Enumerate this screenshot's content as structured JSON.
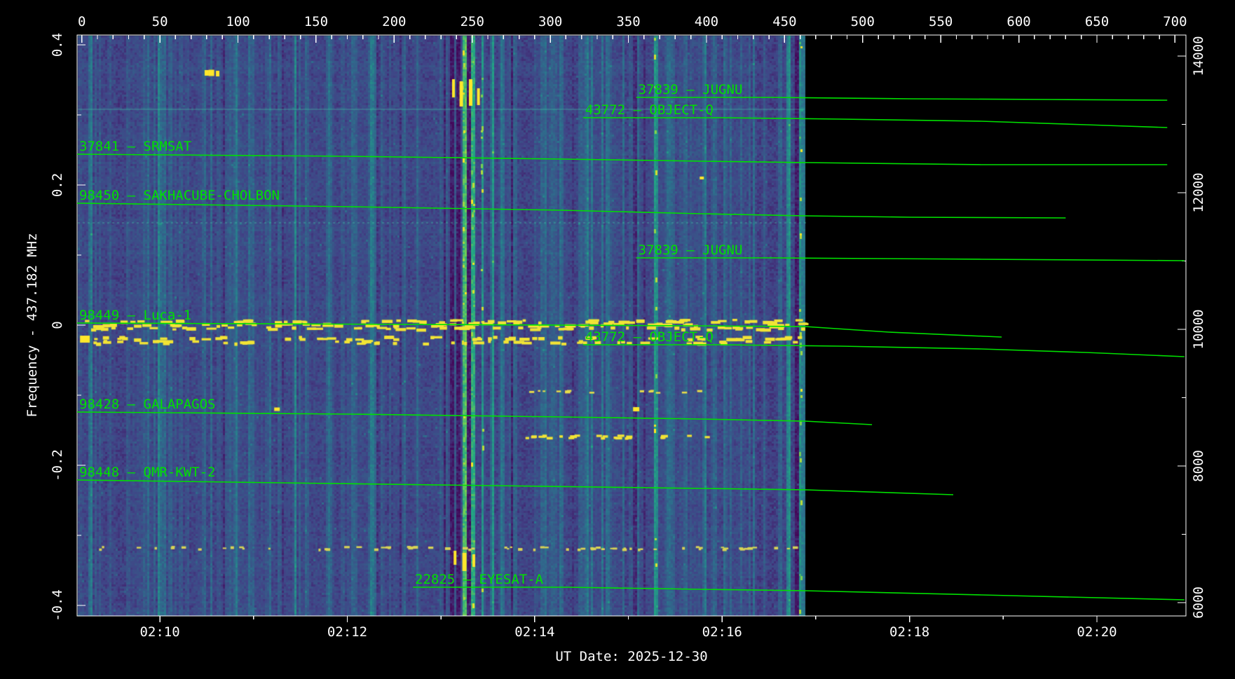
{
  "colors": {
    "background": "#000000",
    "frame": "#ffffff",
    "trace_green": "#00e000",
    "text_white": "#ffffff",
    "heatmap_palette": [
      "#440154",
      "#414487",
      "#2a788e",
      "#22a884",
      "#7ad151",
      "#fde725"
    ]
  },
  "footer": {
    "ut_date": "UT Date: 2025-12-30"
  },
  "chart_data": {
    "type": "heatmap",
    "description": "RF spectrogram waterfall with predicted satellite Doppler traces overlaid in green",
    "x_top_axis": {
      "unit": "seconds since start",
      "range": [
        -3,
        707
      ],
      "major_ticks": [
        0,
        50,
        100,
        150,
        200,
        250,
        300,
        350,
        400,
        450,
        500,
        550,
        600,
        650,
        700
      ],
      "minor_step": 10
    },
    "x_bottom_axis": {
      "ticks": [
        {
          "label": "02:10",
          "t": 50
        },
        {
          "label": "02:12",
          "t": 170
        },
        {
          "label": "02:14",
          "t": 290
        },
        {
          "label": "02:16",
          "t": 410
        },
        {
          "label": "02:18",
          "t": 530
        },
        {
          "label": "02:20",
          "t": 650
        }
      ],
      "minor_ticks_t": [
        110,
        230,
        350,
        470,
        590
      ]
    },
    "y_left_axis": {
      "title": "Frequency - 437.182 MHz",
      "unit": "MHz offset",
      "range": [
        -0.415,
        0.414
      ],
      "major_ticks": [
        {
          "label": "0.4",
          "f": 0.4
        },
        {
          "label": "0.2",
          "f": 0.2
        },
        {
          "label": "0",
          "f": 0
        },
        {
          "label": "-0.2",
          "f": -0.2
        },
        {
          "label": "-0.4",
          "f": -0.4
        }
      ],
      "minor_ticks_f": [
        0.3,
        0.1,
        -0.1,
        -0.3
      ]
    },
    "y_right_axis": {
      "range": [
        5805,
        14308
      ],
      "major_ticks": [
        {
          "label": "14000",
          "v": 14000
        },
        {
          "label": "12000",
          "v": 12000
        },
        {
          "label": "10000",
          "v": 10000
        },
        {
          "label": "8000",
          "v": 8000
        },
        {
          "label": "6000",
          "v": 6000
        }
      ],
      "minor_ticks_v": [
        13000,
        11000,
        9000,
        7000
      ]
    },
    "ut_date": "UT Date: 2025-12-30",
    "data_time_extent": [
      -2,
      463
    ],
    "traces": [
      {
        "norad": "37841",
        "label": "37841 — SRMSAT",
        "points": [
          [
            -3,
            0.244
          ],
          [
            168,
            0.241
          ],
          [
            307,
            0.237
          ],
          [
            396,
            0.234
          ],
          [
            463,
            0.232
          ],
          [
            576,
            0.229
          ],
          [
            695,
            0.229
          ]
        ]
      },
      {
        "norad": "98450",
        "label": "98450 — SAKHACUBE-CHOLBON",
        "points": [
          [
            -3,
            0.174
          ],
          [
            172,
            0.169
          ],
          [
            307,
            0.164
          ],
          [
            396,
            0.159
          ],
          [
            463,
            0.156
          ],
          [
            531,
            0.154
          ],
          [
            630,
            0.153
          ]
        ]
      },
      {
        "norad": "37839",
        "label": "37839 — JUGNU",
        "points": [
          [
            355,
            0.325
          ],
          [
            443,
            0.325
          ],
          [
            531,
            0.323
          ],
          [
            621,
            0.322
          ],
          [
            695,
            0.321
          ]
        ]
      },
      {
        "norad": "43772",
        "label": "43772 — OBJECT-Q",
        "points": [
          [
            321,
            0.296
          ],
          [
            409,
            0.296
          ],
          [
            486,
            0.294
          ],
          [
            576,
            0.291
          ],
          [
            643,
            0.286
          ],
          [
            695,
            0.282
          ]
        ]
      },
      {
        "norad": "37839",
        "label": "37839 — JUGNU",
        "points": [
          [
            355,
            0.096
          ],
          [
            443,
            0.096
          ],
          [
            576,
            0.094
          ],
          [
            706,
            0.092
          ]
        ]
      },
      {
        "norad": "98449",
        "label": "98449 — Luca-1",
        "points": [
          [
            -3,
            0.003
          ],
          [
            217,
            0.001
          ],
          [
            396,
            -0.001
          ],
          [
            463,
            -0.002
          ],
          [
            517,
            -0.01
          ],
          [
            589,
            -0.017
          ]
        ]
      },
      {
        "norad": "43772",
        "label": "43772 — OBJECT-Q",
        "points": [
          [
            321,
            -0.028
          ],
          [
            409,
            -0.028
          ],
          [
            486,
            -0.03
          ],
          [
            576,
            -0.034
          ],
          [
            643,
            -0.039
          ],
          [
            706,
            -0.045
          ]
        ]
      },
      {
        "norad": "98428",
        "label": "98428 — GALAPAGOS",
        "points": [
          [
            -3,
            -0.124
          ],
          [
            172,
            -0.127
          ],
          [
            307,
            -0.131
          ],
          [
            396,
            -0.134
          ],
          [
            463,
            -0.137
          ],
          [
            506,
            -0.142
          ]
        ]
      },
      {
        "norad": "98448",
        "label": "98448 — QMR-KWT-2",
        "points": [
          [
            -3,
            -0.221
          ],
          [
            127,
            -0.225
          ],
          [
            262,
            -0.229
          ],
          [
            396,
            -0.233
          ],
          [
            463,
            -0.235
          ],
          [
            558,
            -0.242
          ]
        ]
      },
      {
        "norad": "22825",
        "label": "22825 — EYESAT-A",
        "points": [
          [
            212,
            -0.374
          ],
          [
            311,
            -0.374
          ],
          [
            396,
            -0.377
          ],
          [
            463,
            -0.379
          ],
          [
            576,
            -0.385
          ],
          [
            706,
            -0.392
          ]
        ]
      }
    ],
    "spectrogram": {
      "base_level": 0.25,
      "dark_columns": [
        {
          "t": 236,
          "w": 4
        },
        {
          "t": 240,
          "w": 3
        },
        {
          "t": 247,
          "w": 3
        },
        {
          "t": 457,
          "w": 3
        }
      ],
      "bright_columns": [
        {
          "t": 244,
          "b": 0.38
        },
        {
          "t": 250,
          "b": 0.42
        },
        {
          "t": 256,
          "b": 0.3
        },
        {
          "t": 262,
          "b": 0.26
        },
        {
          "t": 268,
          "b": 0.22
        },
        {
          "t": 367,
          "b": 0.34
        },
        {
          "t": 185,
          "b": 0.22
        },
        {
          "t": 82,
          "b": 0.16
        },
        {
          "t": 136,
          "b": 0.17
        },
        {
          "t": 306,
          "b": 0.18
        },
        {
          "t": 326,
          "b": 0.15
        },
        {
          "t": 336,
          "b": 0.17
        },
        {
          "t": 346,
          "b": 0.15
        },
        {
          "t": 56,
          "b": 0.14
        },
        {
          "t": 97,
          "b": 0.13
        },
        {
          "t": 158,
          "b": 0.13
        },
        {
          "t": 172,
          "b": 0.14
        },
        {
          "t": 214,
          "b": 0.13
        },
        {
          "t": 277,
          "b": 0.15
        },
        {
          "t": 296,
          "b": 0.14
        },
        {
          "t": 356,
          "b": 0.14
        },
        {
          "t": 377,
          "b": 0.15
        },
        {
          "t": 387,
          "b": 0.13
        },
        {
          "t": 397,
          "b": 0.14
        },
        {
          "t": 411,
          "b": 0.16
        },
        {
          "t": 427,
          "b": 0.13
        },
        {
          "t": 437,
          "b": 0.14
        },
        {
          "t": 447,
          "b": 0.15
        },
        {
          "t": 452,
          "b": 0.26
        },
        {
          "t": 460,
          "b": 0.3
        },
        {
          "t": 462,
          "b": 0.2
        },
        {
          "t": 120,
          "b": 0.11
        },
        {
          "t": 28,
          "b": 0.1
        },
        {
          "t": 230,
          "b": 0.16
        },
        {
          "t": 5,
          "b": 0.1
        }
      ],
      "h_lines": [
        {
          "f": 0.309,
          "alpha": 0.3,
          "dotted": false
        },
        {
          "f": 0.147,
          "alpha": 0.35,
          "dotted": true
        }
      ],
      "dash_bands": [
        {
          "rows_f": [
            0.007,
            0.002,
            -0.003,
            -0.017,
            -0.023
          ],
          "t_range": [
            0,
            462
          ],
          "count": 300,
          "w": [
            4,
            16
          ],
          "h": [
            3,
            5
          ],
          "color": "#f2e435"
        },
        {
          "rows_f": [
            -0.158
          ],
          "t_range": [
            280,
            400
          ],
          "count": 26,
          "w": [
            4,
            10
          ],
          "h": [
            3,
            4
          ],
          "color": "#f2e435"
        },
        {
          "rows_f": [
            -0.094
          ],
          "t_range": [
            282,
            397
          ],
          "count": 16,
          "w": [
            3,
            8
          ],
          "h": [
            2,
            3
          ],
          "color": "#e8dd4a"
        },
        {
          "rows_f": [
            -0.317
          ],
          "t_range": [
            3,
            460
          ],
          "count": 70,
          "w": [
            3,
            8
          ],
          "h": [
            2,
            4
          ],
          "color": "#d8d455"
        }
      ],
      "blobs": [
        [
          80,
          0.36,
          6,
          8
        ],
        [
          83,
          0.36,
          8,
          9
        ],
        [
          87,
          0.359,
          5,
          8
        ],
        [
          238,
          0.338,
          4,
          26
        ],
        [
          243,
          0.33,
          5,
          36
        ],
        [
          249,
          0.332,
          5,
          38
        ],
        [
          254,
          0.326,
          4,
          24
        ],
        [
          239,
          -0.332,
          4,
          20
        ],
        [
          245,
          -0.338,
          6,
          26
        ],
        [
          251,
          -0.336,
          4,
          18
        ],
        [
          125,
          -0.12,
          8,
          5
        ],
        [
          355,
          -0.12,
          9,
          6
        ],
        [
          126,
          0.0,
          10,
          7
        ],
        [
          2,
          -0.02,
          14,
          10
        ],
        [
          397,
          0.21,
          6,
          4
        ]
      ]
    }
  }
}
